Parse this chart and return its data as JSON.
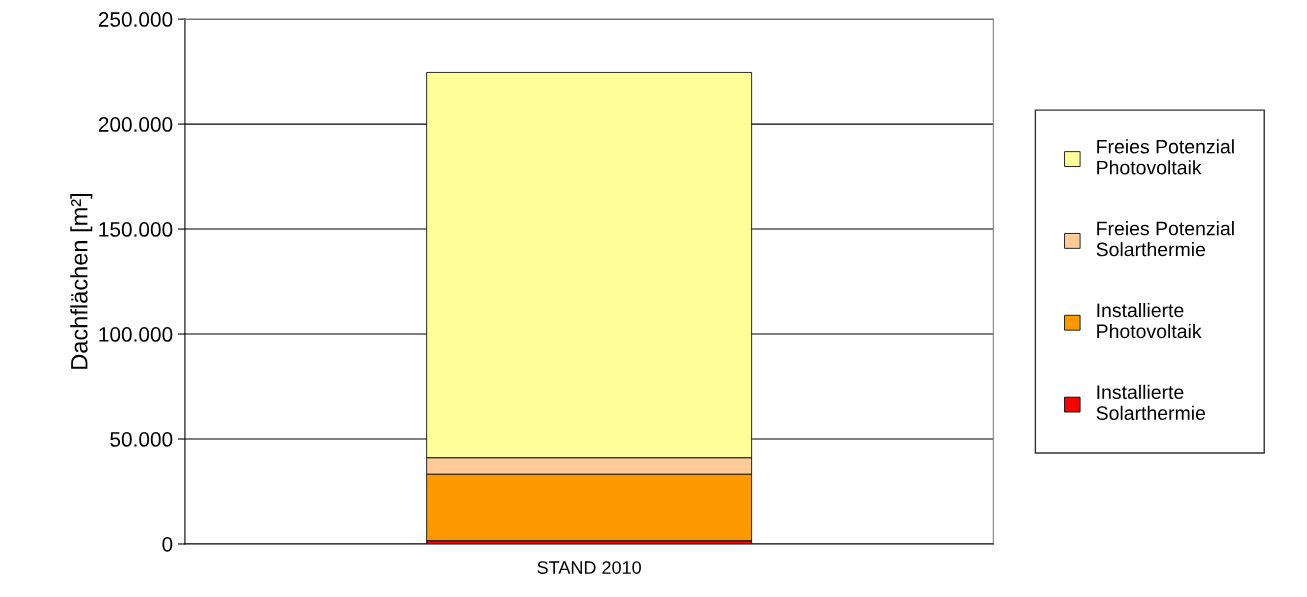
{
  "chart_data": {
    "type": "bar",
    "stacked": true,
    "ylabel": "Dachflächen [m²]",
    "categories": [
      "STAND 2010"
    ],
    "series": [
      {
        "name": "Installierte\nSolarthermie",
        "color": "#ff0000",
        "values": [
          1500
        ]
      },
      {
        "name": "Installierte\nPhotovoltaik",
        "color": "#ff9900",
        "values": [
          31700
        ]
      },
      {
        "name": "Freies Potenzial\nSolarthermie",
        "color": "#ffcc99",
        "values": [
          7800
        ]
      },
      {
        "name": "Freies Potenzial\nPhotovoltaik",
        "color": "#ffff99",
        "values": [
          183600
        ]
      }
    ],
    "ylim": [
      0,
      250000
    ],
    "yticks": [
      {
        "value": 0,
        "label": "0"
      },
      {
        "value": 50000,
        "label": "50.000"
      },
      {
        "value": 100000,
        "label": "100.000"
      },
      {
        "value": 150000,
        "label": "150.000"
      },
      {
        "value": 200000,
        "label": "200.000"
      },
      {
        "value": 250000,
        "label": "250.000"
      }
    ],
    "grid": "y",
    "legend": "right"
  }
}
